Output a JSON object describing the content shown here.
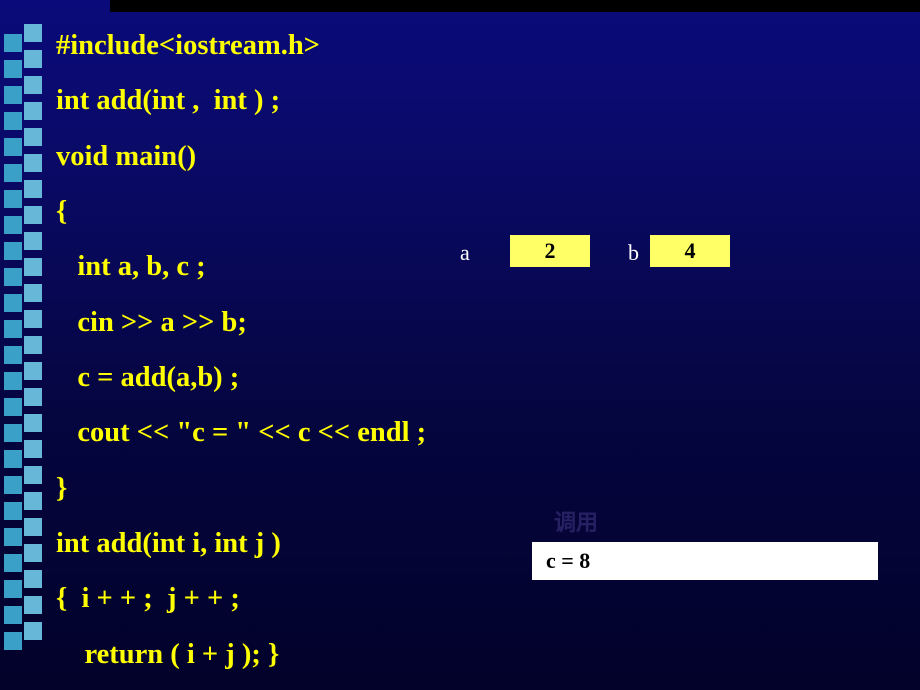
{
  "code_lines": [
    "#include<iostream.h>",
    "int add(int ,  int ) ;",
    "void main()",
    "{",
    "   int a, b, c ;",
    "   cin >> a >> b;",
    "   c = add(a,b) ;",
    "   cout << \"c = \" << c << endl ;",
    "}",
    "int add(int i, int j )",
    "{  i + + ;  j + + ;",
    "    return ( i + j ); }"
  ],
  "var_a": {
    "label": "a",
    "value": "2"
  },
  "var_b": {
    "label": "b",
    "value": "4"
  },
  "output": "c = 8",
  "faded": "调用",
  "colors": {
    "code_text": "#ffff00",
    "box_bg": "#ffff66",
    "output_bg": "#ffffff",
    "var_label": "#ffffff"
  },
  "bullet_squares": {
    "count": 24,
    "top_start": 34,
    "gap": 26,
    "color_main": "#3ba0c8",
    "color_light": "#67b8d8"
  }
}
